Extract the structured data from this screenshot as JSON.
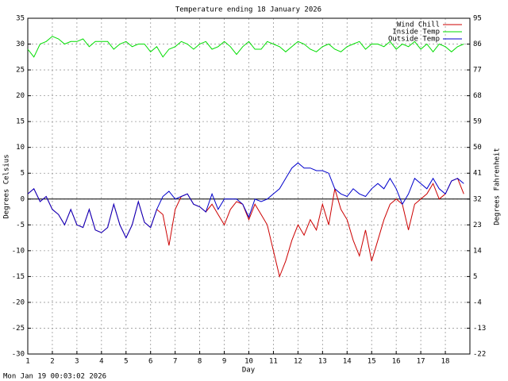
{
  "chart_data": {
    "type": "line",
    "title": "Temperature ending 18 January 2026",
    "xlabel": "Day",
    "ylabel": "Degrees Celsius",
    "y2label": "Degrees Fahrenheit",
    "footer": "Mon Jan 19 00:03:02 2026",
    "x": [
      1,
      1.25,
      1.5,
      1.75,
      2,
      2.25,
      2.5,
      2.75,
      3,
      3.25,
      3.5,
      3.75,
      4,
      4.25,
      4.5,
      4.75,
      5,
      5.25,
      5.5,
      5.75,
      6,
      6.25,
      6.5,
      6.75,
      7,
      7.25,
      7.5,
      7.75,
      8,
      8.25,
      8.5,
      8.75,
      9,
      9.25,
      9.5,
      9.75,
      10,
      10.25,
      10.5,
      10.75,
      11,
      11.25,
      11.5,
      11.75,
      12,
      12.25,
      12.5,
      12.75,
      13,
      13.25,
      13.5,
      13.75,
      14,
      14.25,
      14.5,
      14.75,
      15,
      15.25,
      15.5,
      15.75,
      16,
      16.25,
      16.5,
      16.75,
      17,
      17.25,
      17.5,
      17.75,
      18,
      18.25,
      18.5,
      18.75
    ],
    "series": [
      {
        "name": "Wind Chill",
        "color": "#cc0000",
        "values": [
          1,
          2,
          -0.5,
          0.5,
          -2,
          -3,
          -5,
          -2,
          -5,
          -5.5,
          -2,
          -6,
          -6.5,
          -5.5,
          -1,
          -5,
          -7.5,
          -5,
          -0.5,
          -4.5,
          -5.5,
          -2,
          -3,
          -9,
          -2,
          0.5,
          1,
          -1,
          -1.5,
          -2.5,
          -1,
          -3,
          -5,
          -2,
          -0.5,
          -1,
          -4,
          -1,
          -3,
          -5,
          -10,
          -15,
          -12,
          -8,
          -5,
          -7,
          -4,
          -6,
          -1,
          -5,
          2,
          -2,
          -4,
          -8,
          -11,
          -6,
          -12,
          -8,
          -4,
          -1,
          0,
          -1,
          -6,
          -1,
          0,
          1,
          3,
          0,
          1,
          3.5,
          4,
          1
        ]
      },
      {
        "name": "Inside Temp",
        "color": "#00dd00",
        "values": [
          29,
          27.5,
          30,
          30.5,
          31.5,
          31,
          30,
          30.5,
          30.5,
          31,
          29.5,
          30.5,
          30.5,
          30.5,
          29,
          30,
          30.5,
          29.5,
          30,
          30,
          28.5,
          29.5,
          27.5,
          29,
          29.5,
          30.5,
          30,
          29,
          30,
          30.5,
          29,
          29.5,
          30.5,
          29.5,
          28,
          29.5,
          30.5,
          29,
          29,
          30.5,
          30,
          29.5,
          28.5,
          29.5,
          30.5,
          30,
          29,
          28.5,
          29.5,
          30,
          29,
          28.5,
          29.5,
          30,
          30.5,
          29,
          30,
          30,
          29.5,
          30.5,
          29,
          30,
          29.5,
          30.5,
          29,
          30,
          28.5,
          30,
          29.5,
          28.5,
          29.5,
          30
        ]
      },
      {
        "name": "Outside Temp",
        "color": "#0000cc",
        "values": [
          1,
          2,
          -0.5,
          0.5,
          -2,
          -3,
          -5,
          -2,
          -5,
          -5.5,
          -2,
          -6,
          -6.5,
          -5.5,
          -1,
          -5,
          -7.5,
          -5,
          -0.5,
          -4.5,
          -5.5,
          -2,
          0.5,
          1.5,
          0,
          0.5,
          1,
          -1,
          -1.5,
          -2.5,
          1,
          -2,
          0,
          0,
          0,
          -1,
          -3.5,
          0,
          -0.5,
          0,
          1,
          2,
          4,
          6,
          7,
          6,
          6,
          5.5,
          5.5,
          5,
          2,
          1,
          0.5,
          2,
          1,
          0.5,
          2,
          3,
          2,
          4,
          2,
          -1,
          1,
          4,
          3,
          2,
          4,
          2,
          1,
          3.5,
          4,
          3
        ]
      }
    ],
    "xlim": [
      1,
      19
    ],
    "xticks": [
      1,
      2,
      3,
      4,
      5,
      6,
      7,
      8,
      9,
      10,
      11,
      12,
      13,
      14,
      15,
      16,
      17,
      18
    ],
    "ylim": [
      -30,
      35
    ],
    "yticks": [
      -30,
      -25,
      -20,
      -15,
      -10,
      -5,
      0,
      5,
      10,
      15,
      20,
      25,
      30,
      35
    ],
    "y2lim": [
      -22,
      95
    ],
    "y2ticks": [
      -22,
      -13,
      -4,
      5,
      14,
      23,
      32,
      41,
      50,
      59,
      68,
      77,
      86,
      95
    ],
    "grid": true,
    "legend": "upper right"
  }
}
